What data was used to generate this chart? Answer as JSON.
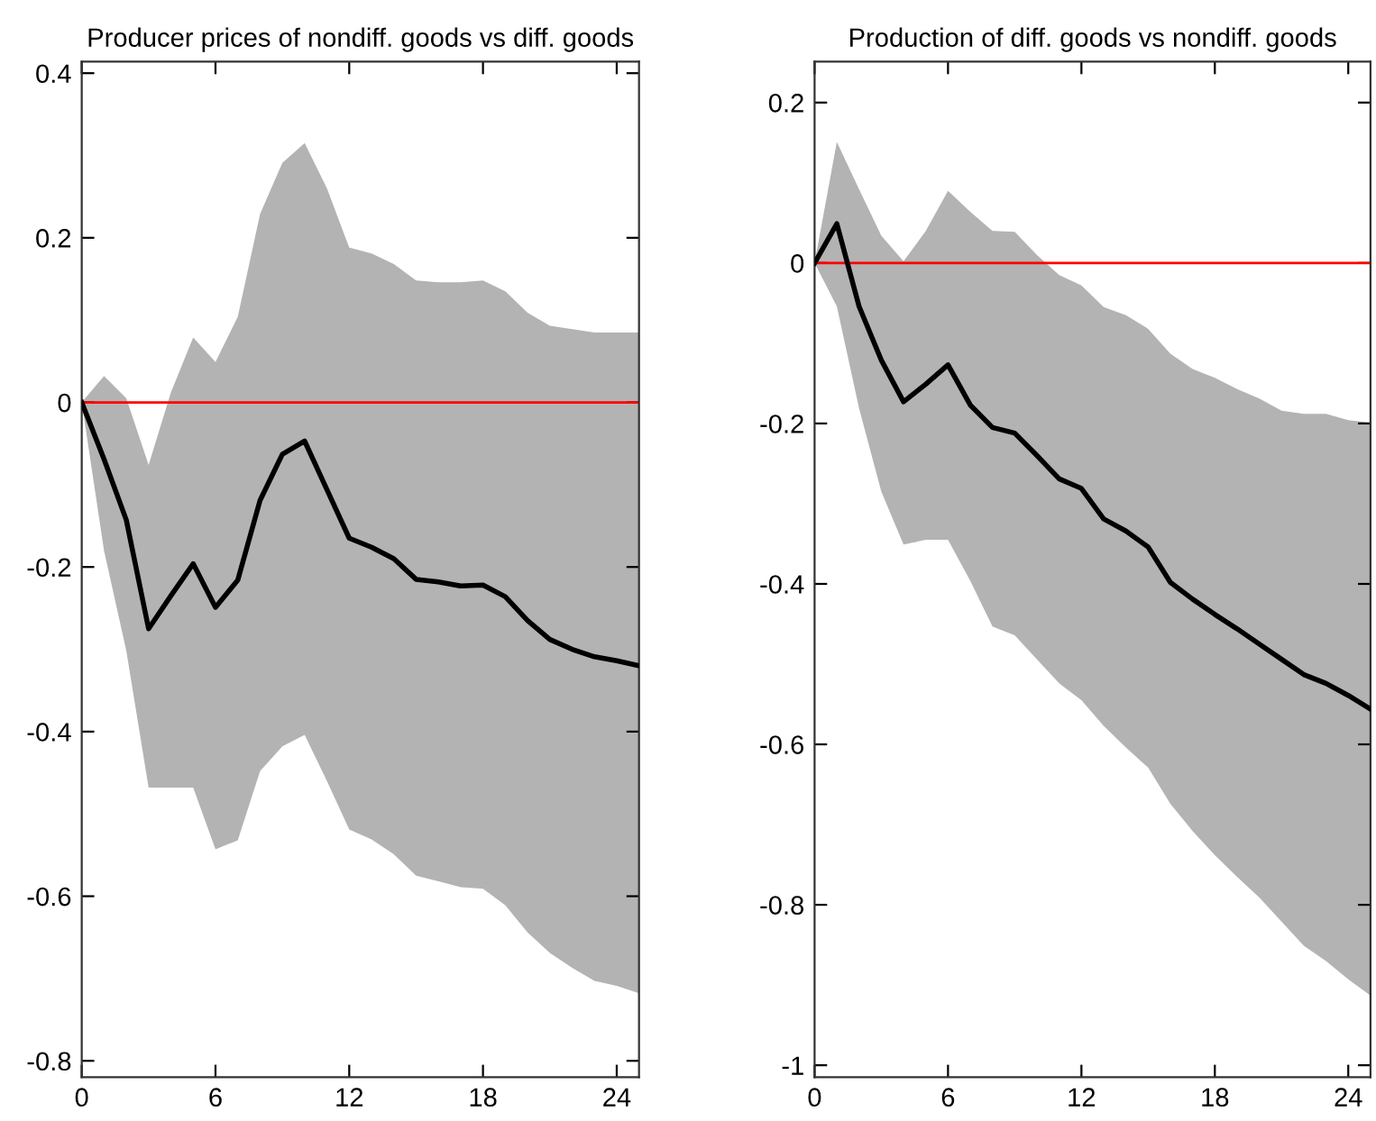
{
  "chart_data": [
    {
      "type": "line",
      "title": "Producer prices of nondiff. goods vs diff. goods",
      "x": [
        0,
        1,
        2,
        3,
        4,
        5,
        6,
        7,
        8,
        9,
        10,
        11,
        12,
        13,
        14,
        15,
        16,
        17,
        18,
        19,
        20,
        21,
        22,
        23,
        24,
        25
      ],
      "series": [
        {
          "color": "#000000",
          "values": [
            0,
            -0.069,
            -0.143,
            -0.275,
            -0.235,
            -0.196,
            -0.249,
            -0.216,
            -0.119,
            -0.063,
            -0.047,
            -0.106,
            -0.165,
            -0.176,
            -0.19,
            -0.215,
            -0.218,
            -0.223,
            -0.222,
            -0.236,
            -0.265,
            -0.288,
            -0.3,
            -0.309,
            -0.314,
            -0.32
          ],
          "lower": [
            0,
            -0.18,
            -0.302,
            -0.468,
            -0.468,
            -0.468,
            -0.543,
            -0.532,
            -0.448,
            -0.418,
            -0.404,
            -0.46,
            -0.519,
            -0.531,
            -0.549,
            -0.575,
            -0.582,
            -0.589,
            -0.591,
            -0.611,
            -0.644,
            -0.669,
            -0.687,
            -0.703,
            -0.709,
            -0.718
          ],
          "upper": [
            0,
            0.032,
            0.005,
            -0.076,
            0.012,
            0.079,
            0.049,
            0.104,
            0.229,
            0.291,
            0.315,
            0.26,
            0.188,
            0.181,
            0.168,
            0.148,
            0.146,
            0.146,
            0.148,
            0.135,
            0.109,
            0.093,
            0.089,
            0.085,
            0.085,
            0.085
          ]
        }
      ],
      "xlim": [
        0,
        25
      ],
      "xticks": [
        0,
        6,
        12,
        18,
        24
      ],
      "ylim": [
        -0.82,
        0.414
      ],
      "yticks": [
        -0.8,
        -0.6,
        -0.4,
        -0.2,
        0,
        0.2,
        0.4
      ],
      "ref_lines": [
        {
          "axis": "y",
          "value": 0,
          "color": "#ff0000"
        }
      ],
      "grid": false
    },
    {
      "type": "line",
      "title": "Production of diff. goods vs nondiff. goods",
      "x": [
        0,
        1,
        2,
        3,
        4,
        5,
        6,
        7,
        8,
        9,
        10,
        11,
        12,
        13,
        14,
        15,
        16,
        17,
        18,
        19,
        20,
        21,
        22,
        23,
        24,
        25
      ],
      "series": [
        {
          "color": "#000000",
          "values": [
            0,
            0.049,
            -0.054,
            -0.121,
            -0.173,
            -0.151,
            -0.127,
            -0.177,
            -0.205,
            -0.212,
            -0.24,
            -0.269,
            -0.281,
            -0.319,
            -0.334,
            -0.354,
            -0.398,
            -0.419,
            -0.438,
            -0.456,
            -0.475,
            -0.494,
            -0.513,
            -0.524,
            -0.539,
            -0.556
          ],
          "lower": [
            0,
            -0.054,
            -0.181,
            -0.285,
            -0.351,
            -0.345,
            -0.345,
            -0.396,
            -0.453,
            -0.464,
            -0.494,
            -0.524,
            -0.545,
            -0.577,
            -0.604,
            -0.629,
            -0.674,
            -0.708,
            -0.738,
            -0.765,
            -0.791,
            -0.821,
            -0.851,
            -0.87,
            -0.893,
            -0.913
          ],
          "upper": [
            0,
            0.151,
            0.092,
            0.034,
            0.002,
            0.04,
            0.09,
            0.064,
            0.04,
            0.039,
            0.01,
            -0.015,
            -0.028,
            -0.055,
            -0.065,
            -0.082,
            -0.113,
            -0.132,
            -0.143,
            -0.157,
            -0.169,
            -0.184,
            -0.188,
            -0.188,
            -0.196,
            -0.199
          ]
        }
      ],
      "xlim": [
        0,
        25
      ],
      "xticks": [
        0,
        6,
        12,
        18,
        24
      ],
      "ylim": [
        -1.015,
        0.251
      ],
      "yticks": [
        -1,
        -0.8,
        -0.6,
        -0.4,
        -0.2,
        0,
        0.2
      ],
      "ref_lines": [
        {
          "axis": "y",
          "value": 0,
          "color": "#ff0000"
        }
      ],
      "grid": false
    }
  ]
}
